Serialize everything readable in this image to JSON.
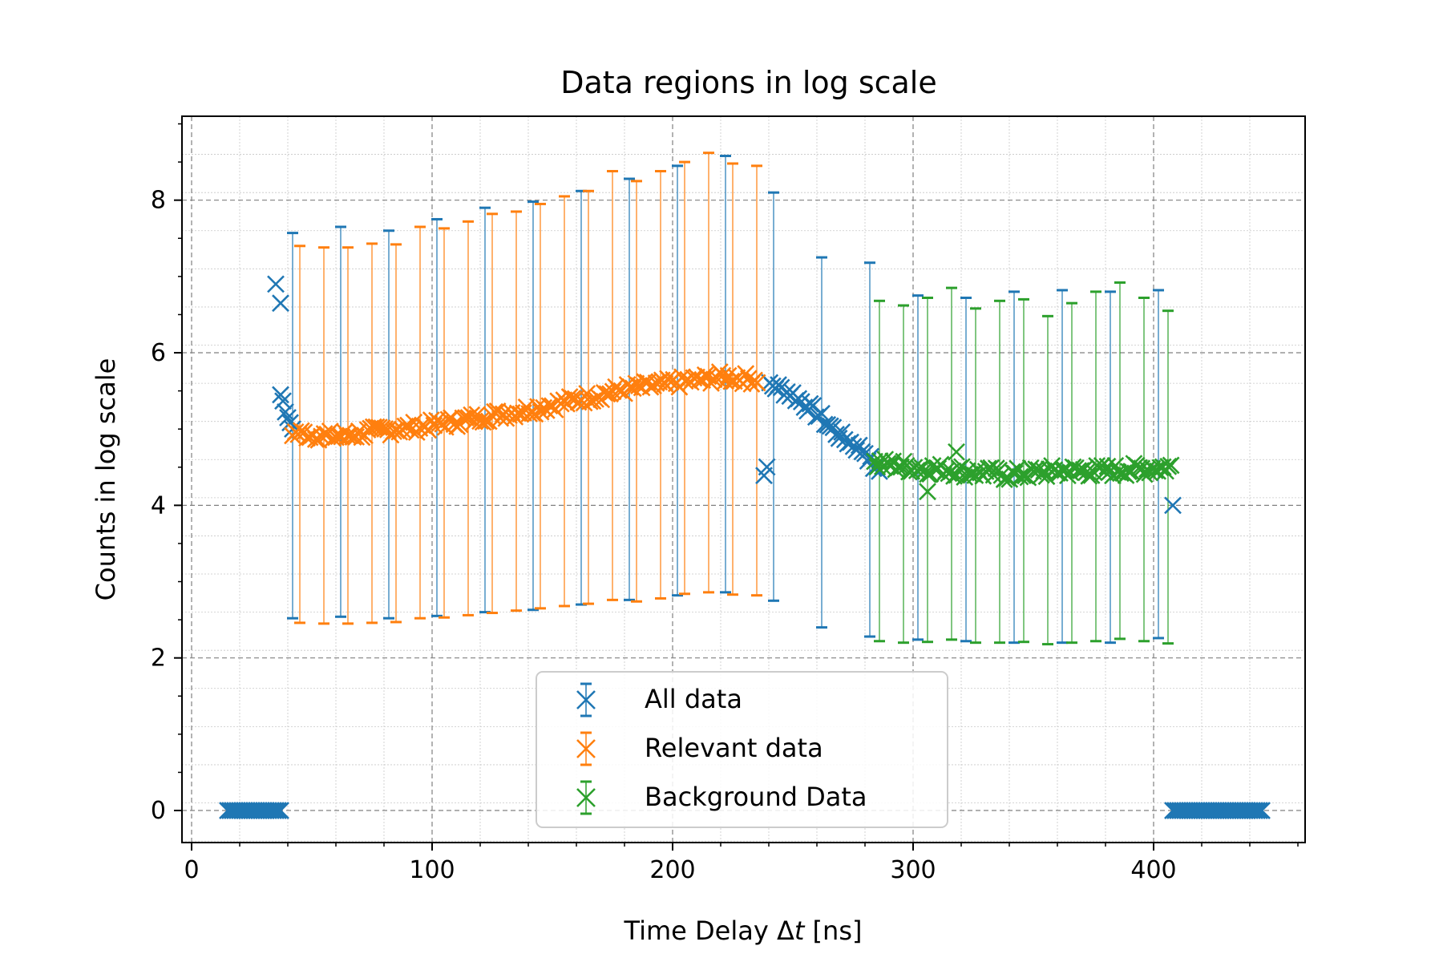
{
  "chart_data": {
    "type": "scatter",
    "title": "Data regions in log scale",
    "xlabel_prefix": "Time Delay ",
    "xlabel_delta": "Δ",
    "xlabel_var": "t",
    "xlabel_suffix": " [ns]",
    "ylabel": "Counts in log scale",
    "xlim": [
      -4,
      463
    ],
    "ylim": [
      -0.42,
      9.1
    ],
    "x_ticks": [
      0,
      100,
      200,
      300,
      400
    ],
    "x_tick_labels": [
      "0",
      "100",
      "200",
      "300",
      "400"
    ],
    "y_ticks": [
      0,
      2,
      4,
      6,
      8
    ],
    "y_tick_labels": [
      "0",
      "2",
      "4",
      "6",
      "8"
    ],
    "grid": true,
    "minor_grid": true,
    "legend_position": "bottom-center",
    "colors": {
      "all": "#1f77b4",
      "relevant": "#ff7f0e",
      "background": "#2ca02c"
    },
    "series": [
      {
        "name": "All data",
        "key": "all",
        "marker": "x",
        "points_profile": [
          [
            15,
            0.0
          ],
          [
            37,
            0.0
          ],
          [
            35,
            6.9
          ],
          [
            37,
            6.65
          ],
          [
            38,
            5.4
          ],
          [
            40,
            5.3
          ],
          [
            42,
            5.05
          ],
          [
            240,
            5.6
          ],
          [
            250,
            5.45
          ],
          [
            260,
            5.2
          ],
          [
            270,
            4.9
          ],
          [
            280,
            4.7
          ],
          [
            285,
            4.45
          ],
          [
            408,
            4.0
          ],
          [
            408,
            0.0
          ],
          [
            445,
            0.0
          ]
        ],
        "errorbars": [
          [
            42,
            5.0,
            7.57,
            2.52
          ],
          [
            62,
            4.95,
            7.65,
            2.54
          ],
          [
            82,
            5.0,
            7.6,
            2.52
          ],
          [
            102,
            5.1,
            7.75,
            2.55
          ],
          [
            122,
            5.2,
            7.9,
            2.6
          ],
          [
            142,
            5.3,
            7.98,
            2.63
          ],
          [
            162,
            5.45,
            8.12,
            2.7
          ],
          [
            182,
            5.55,
            8.28,
            2.76
          ],
          [
            202,
            5.62,
            8.45,
            2.82
          ],
          [
            222,
            5.68,
            8.58,
            2.86
          ],
          [
            242,
            5.55,
            8.1,
            2.75
          ],
          [
            262,
            5.15,
            7.25,
            2.4
          ],
          [
            282,
            4.6,
            7.18,
            2.28
          ],
          [
            302,
            4.45,
            6.75,
            2.24
          ],
          [
            322,
            4.4,
            6.72,
            2.22
          ],
          [
            342,
            4.42,
            6.8,
            2.2
          ],
          [
            362,
            4.45,
            6.82,
            2.2
          ],
          [
            382,
            4.4,
            6.8,
            2.2
          ],
          [
            402,
            4.4,
            6.82,
            2.26
          ]
        ]
      },
      {
        "name": "Relevant data",
        "key": "relevant",
        "marker": "x",
        "points_profile": [
          [
            42,
            4.95
          ],
          [
            60,
            4.9
          ],
          [
            80,
            4.98
          ],
          [
            100,
            5.05
          ],
          [
            120,
            5.15
          ],
          [
            140,
            5.25
          ],
          [
            160,
            5.38
          ],
          [
            180,
            5.52
          ],
          [
            200,
            5.6
          ],
          [
            220,
            5.68
          ],
          [
            236,
            5.65
          ]
        ],
        "errorbars": [
          [
            45,
            4.92,
            7.4,
            2.46
          ],
          [
            55,
            4.9,
            7.38,
            2.45
          ],
          [
            65,
            4.92,
            7.38,
            2.45
          ],
          [
            75,
            4.95,
            7.43,
            2.46
          ],
          [
            85,
            4.98,
            7.42,
            2.47
          ],
          [
            95,
            5.0,
            7.65,
            2.52
          ],
          [
            105,
            5.05,
            7.63,
            2.53
          ],
          [
            115,
            5.12,
            7.72,
            2.56
          ],
          [
            125,
            5.18,
            7.82,
            2.59
          ],
          [
            135,
            5.22,
            7.85,
            2.62
          ],
          [
            145,
            5.3,
            7.95,
            2.65
          ],
          [
            155,
            5.35,
            8.05,
            2.68
          ],
          [
            165,
            5.42,
            8.12,
            2.71
          ],
          [
            175,
            5.5,
            8.38,
            2.76
          ],
          [
            185,
            5.55,
            8.25,
            2.74
          ],
          [
            195,
            5.6,
            8.38,
            2.78
          ],
          [
            205,
            5.65,
            8.5,
            2.84
          ],
          [
            215,
            5.7,
            8.62,
            2.86
          ],
          [
            225,
            5.68,
            8.48,
            2.83
          ],
          [
            235,
            5.62,
            8.45,
            2.82
          ]
        ]
      },
      {
        "name": "Background Data",
        "key": "background",
        "marker": "x",
        "points_profile": [
          [
            284,
            4.55
          ],
          [
            300,
            4.5
          ],
          [
            320,
            4.45
          ],
          [
            340,
            4.4
          ],
          [
            360,
            4.45
          ],
          [
            380,
            4.45
          ],
          [
            408,
            4.5
          ]
        ],
        "errorbars": [
          [
            286,
            4.5,
            6.68,
            2.22
          ],
          [
            296,
            4.48,
            6.62,
            2.2
          ],
          [
            306,
            4.45,
            6.72,
            2.21
          ],
          [
            316,
            4.42,
            6.85,
            2.24
          ],
          [
            326,
            4.4,
            6.58,
            2.2
          ],
          [
            336,
            4.4,
            6.68,
            2.2
          ],
          [
            346,
            4.42,
            6.7,
            2.21
          ],
          [
            356,
            4.45,
            6.48,
            2.18
          ],
          [
            366,
            4.44,
            6.65,
            2.2
          ],
          [
            376,
            4.42,
            6.8,
            2.22
          ],
          [
            386,
            4.45,
            6.92,
            2.25
          ],
          [
            396,
            4.45,
            6.72,
            2.22
          ],
          [
            406,
            4.48,
            6.55,
            2.19
          ]
        ]
      }
    ]
  }
}
